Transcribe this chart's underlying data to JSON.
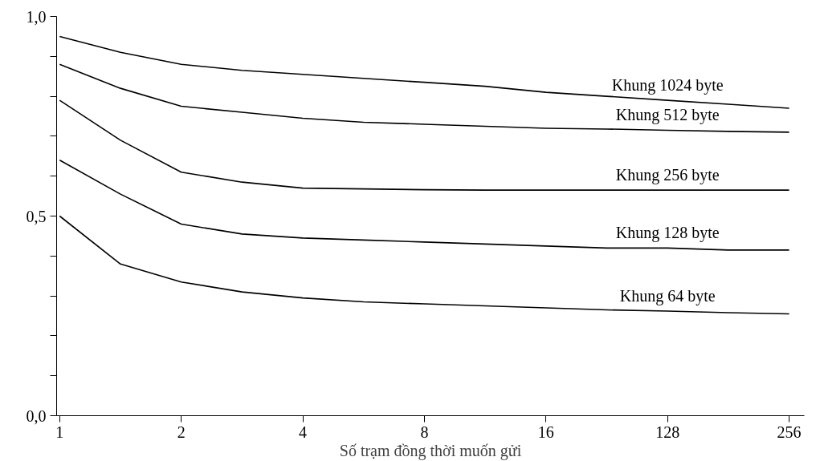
{
  "chart_data": {
    "type": "line",
    "xlabel": "Số trạm đồng thời muốn gửi",
    "categories": [
      "1",
      null,
      "2",
      null,
      "4",
      null,
      "8",
      null,
      "16",
      null,
      "128",
      null,
      "256"
    ],
    "ylim": [
      0,
      1.0
    ],
    "yticks": [
      {
        "value": 0,
        "label": "0,0"
      },
      {
        "value": 0.1,
        "label": null
      },
      {
        "value": 0.2,
        "label": null
      },
      {
        "value": 0.3,
        "label": null
      },
      {
        "value": 0.4,
        "label": null
      },
      {
        "value": 0.5,
        "label": "0,5"
      },
      {
        "value": 0.6,
        "label": null
      },
      {
        "value": 0.7,
        "label": null
      },
      {
        "value": 0.8,
        "label": null
      },
      {
        "value": 0.9,
        "label": null
      },
      {
        "value": 1.0,
        "label": "1,0"
      }
    ],
    "grid": false,
    "legend": false,
    "marker": "none",
    "line_style": "solid",
    "series": [
      {
        "name": "Khung 1024 byte",
        "color": "#000000",
        "values": [
          0.95,
          0.91,
          0.88,
          0.865,
          0.855,
          0.845,
          0.835,
          0.825,
          0.81,
          0.8,
          0.79,
          0.78,
          0.77
        ]
      },
      {
        "name": "Khung 512 byte",
        "color": "#000000",
        "values": [
          0.88,
          0.82,
          0.775,
          0.76,
          0.745,
          0.735,
          0.73,
          0.725,
          0.72,
          0.718,
          0.715,
          0.712,
          0.71
        ]
      },
      {
        "name": "Khung 256 byte",
        "color": "#000000",
        "values": [
          0.79,
          0.69,
          0.61,
          0.585,
          0.57,
          0.568,
          0.566,
          0.565,
          0.565,
          0.565,
          0.565,
          0.565,
          0.565
        ]
      },
      {
        "name": "Khung 128 byte",
        "color": "#000000",
        "values": [
          0.64,
          0.555,
          0.48,
          0.455,
          0.445,
          0.44,
          0.435,
          0.43,
          0.425,
          0.42,
          0.42,
          0.415,
          0.415
        ]
      },
      {
        "name": "Khung 64 byte",
        "color": "#000000",
        "values": [
          0.5,
          0.38,
          0.335,
          0.31,
          0.295,
          0.285,
          0.28,
          0.275,
          0.27,
          0.265,
          0.262,
          0.258,
          0.255
        ]
      }
    ]
  }
}
